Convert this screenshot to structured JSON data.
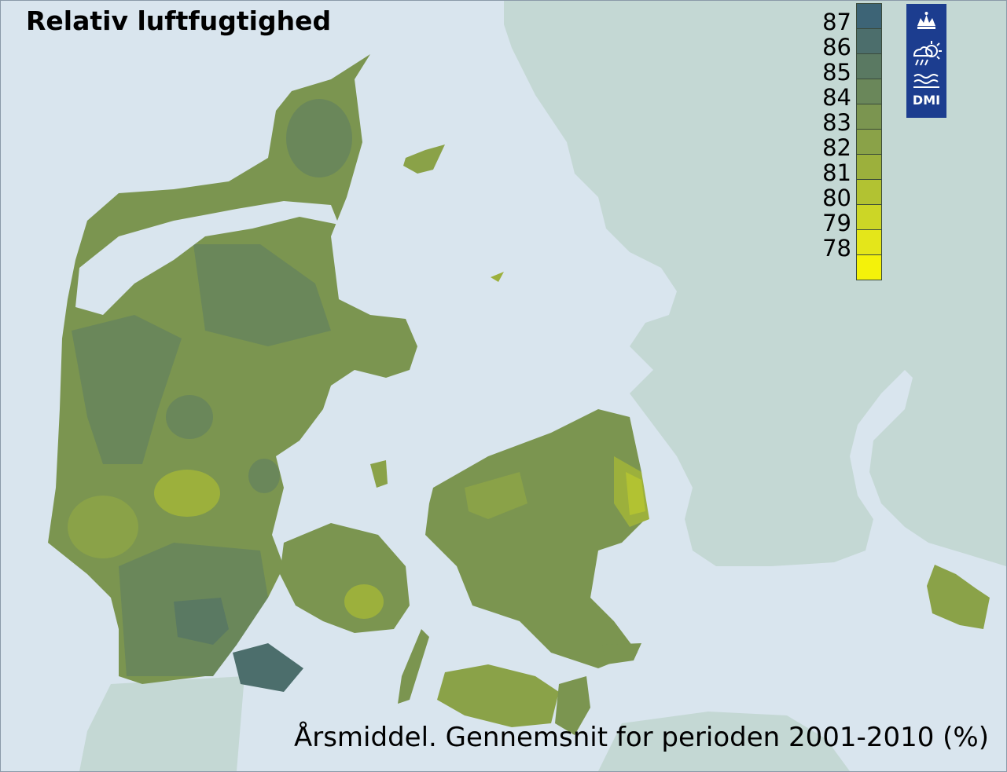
{
  "title": "Relativ luftfugtighed",
  "subtitle": "Årsmiddel. Gennemsnit for perioden 2001-2010 (%)",
  "legend": [
    {
      "label": "87",
      "color": "#3d6476"
    },
    {
      "label": "86",
      "color": "#4c6e6c"
    },
    {
      "label": "85",
      "color": "#5a7962"
    },
    {
      "label": "84",
      "color": "#6a875a"
    },
    {
      "label": "83",
      "color": "#7b9550"
    },
    {
      "label": "82",
      "color": "#8aa248"
    },
    {
      "label": "81",
      "color": "#9cb03c"
    },
    {
      "label": "80",
      "color": "#b2c232"
    },
    {
      "label": "79",
      "color": "#ccd626"
    },
    {
      "label": "78",
      "color": "#e4e61a"
    },
    {
      "label": "",
      "color": "#f4f20a"
    }
  ],
  "logo": {
    "text": "DMI",
    "icon": "dmi-crown-weather-icon"
  },
  "colors": {
    "sea": "#d9e5ee",
    "foreign_land": "#c4d8d4"
  }
}
